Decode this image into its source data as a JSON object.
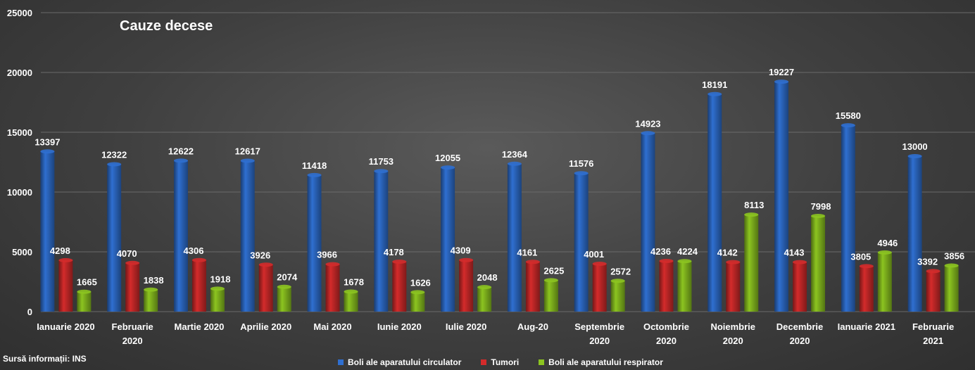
{
  "chart_data": {
    "type": "bar",
    "title": "Cauze decese",
    "categories": [
      [
        "Ianuarie 2020"
      ],
      [
        "Februarie",
        "2020"
      ],
      [
        "Martie 2020"
      ],
      [
        "Aprilie 2020"
      ],
      [
        "Mai 2020"
      ],
      [
        "Iunie 2020"
      ],
      [
        "Iulie 2020"
      ],
      [
        "Aug-20"
      ],
      [
        "Septembrie",
        "2020"
      ],
      [
        "Octombrie",
        "2020"
      ],
      [
        "Noiembrie",
        "2020"
      ],
      [
        "Decembrie",
        "2020"
      ],
      [
        "Ianuarie 2021"
      ],
      [
        "Februarie",
        "2021"
      ]
    ],
    "series": [
      {
        "name": "Boli ale aparatului circulator",
        "color": "#2f6fd0",
        "values": [
          13397,
          12322,
          12622,
          12617,
          11418,
          11753,
          12055,
          12364,
          11576,
          14923,
          18191,
          19227,
          15580,
          13000
        ]
      },
      {
        "name": "Tumori",
        "color": "#d42b2b",
        "values": [
          4298,
          4070,
          4306,
          3926,
          3966,
          4178,
          4309,
          4161,
          4001,
          4236,
          4142,
          4143,
          3805,
          3392
        ]
      },
      {
        "name": "Boli ale aparatului respirator",
        "color": "#8cc420",
        "values": [
          1665,
          1838,
          1918,
          2074,
          1678,
          1626,
          2048,
          2625,
          2572,
          4224,
          8113,
          7998,
          4946,
          3856
        ]
      }
    ],
    "y_ticks": [
      "0",
      "5000",
      "10000",
      "15000",
      "20000",
      "25000"
    ],
    "ylim": [
      0,
      25000
    ],
    "grid": true,
    "legend_position": "bottom"
  },
  "source_text": "Sursă informații: INS"
}
